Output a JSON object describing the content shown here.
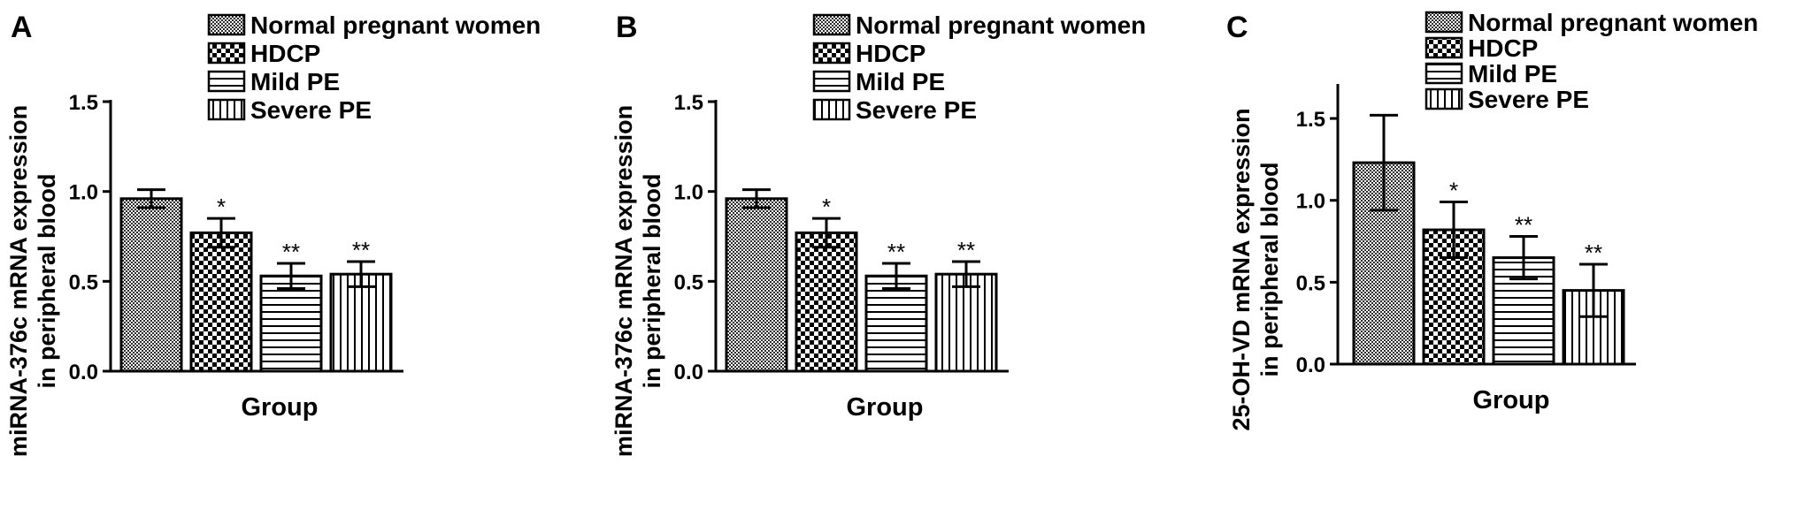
{
  "chart_data": [
    {
      "panel": "A",
      "type": "bar",
      "categories": [
        "Normal pregnant women",
        "HDCP",
        "Mild PE",
        "Severe PE"
      ],
      "values": [
        0.96,
        0.77,
        0.53,
        0.54
      ],
      "errors": [
        0.05,
        0.08,
        0.07,
        0.07
      ],
      "significance": [
        "",
        "*",
        "**",
        "**"
      ],
      "patterns": [
        "dense",
        "checker",
        "hlines",
        "vlines"
      ],
      "legend": [
        "Normal pregnant women",
        "HDCP",
        "Mild PE",
        "Severe PE"
      ],
      "xlabel": "Group",
      "ylabel_lines": [
        "miRNA-376c mRNA expression",
        "in peripheral blood"
      ],
      "ylim": [
        0,
        1.5
      ],
      "yticks": [
        0.0,
        0.5,
        1.0,
        1.5
      ],
      "ytick_labels": [
        "0.0",
        "0.5",
        "1.0",
        "1.5"
      ],
      "grid": false,
      "legend_position": "top"
    },
    {
      "panel": "B",
      "type": "bar",
      "categories": [
        "Normal pregnant women",
        "HDCP",
        "Mild PE",
        "Severe PE"
      ],
      "values": [
        0.96,
        0.77,
        0.53,
        0.54
      ],
      "errors": [
        0.05,
        0.08,
        0.07,
        0.07
      ],
      "significance": [
        "",
        "*",
        "**",
        "**"
      ],
      "patterns": [
        "dense",
        "checker",
        "hlines",
        "vlines"
      ],
      "legend": [
        "Normal pregnant women",
        "HDCP",
        "Mild PE",
        "Severe PE"
      ],
      "xlabel": "Group",
      "ylabel_lines": [
        "miRNA-376c mRNA expression",
        "in peripheral blood"
      ],
      "ylim": [
        0,
        1.5
      ],
      "yticks": [
        0.0,
        0.5,
        1.0,
        1.5
      ],
      "ytick_labels": [
        "0.0",
        "0.5",
        "1.0",
        "1.5"
      ],
      "grid": false,
      "legend_position": "top"
    },
    {
      "panel": "C",
      "type": "bar",
      "categories": [
        "Normal pregnant women",
        "HDCP",
        "Mild PE",
        "Severe PE"
      ],
      "values": [
        1.23,
        0.82,
        0.65,
        0.45
      ],
      "errors": [
        0.29,
        0.17,
        0.13,
        0.16
      ],
      "significance": [
        "",
        "*",
        "**",
        "**"
      ],
      "patterns": [
        "dense",
        "checker",
        "hlines",
        "vlines"
      ],
      "legend": [
        "Normal pregnant women",
        "HDCP",
        "Mild PE",
        "Severe PE"
      ],
      "xlabel": "Group",
      "ylabel_lines": [
        "25-OH-VD mRNA expression",
        "in peripheral blood"
      ],
      "ylim": [
        0,
        1.7
      ],
      "yticks": [
        0.0,
        0.5,
        1.0,
        1.5
      ],
      "ytick_labels": [
        "0.0",
        "0.5",
        "1.0",
        "1.5"
      ],
      "grid": false,
      "legend_position": "top"
    }
  ]
}
